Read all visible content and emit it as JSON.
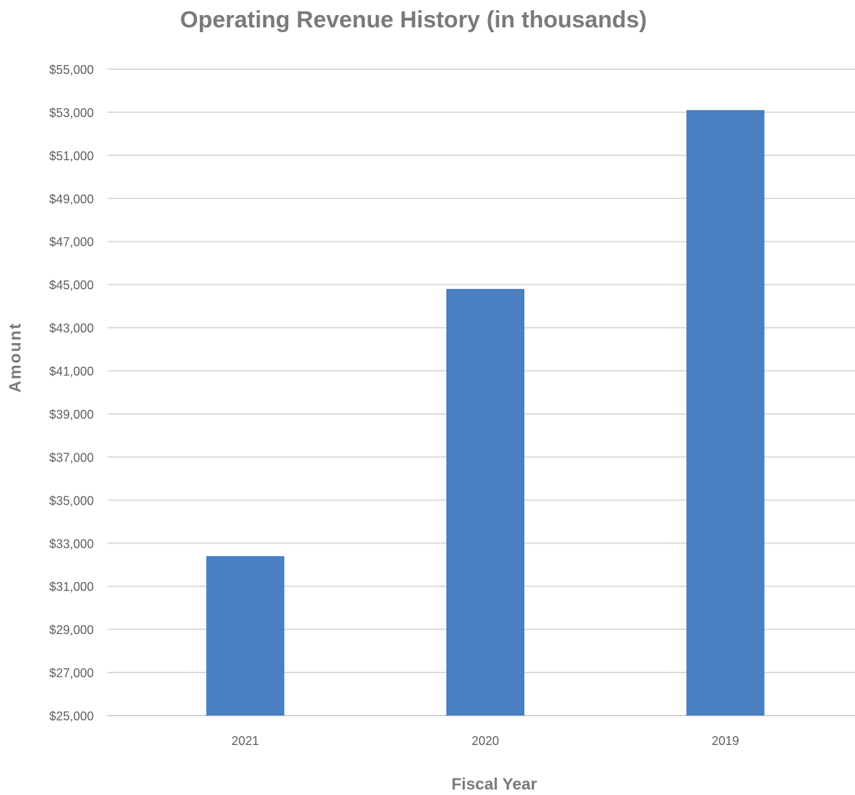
{
  "chart_data": {
    "type": "bar",
    "title": "Operating Revenue History (in thousands)",
    "xlabel": "Fiscal Year",
    "ylabel": "Amount",
    "categories": [
      "2021",
      "2020",
      "2019"
    ],
    "values": [
      32400,
      44800,
      53100
    ],
    "ylim": [
      25000,
      55000
    ],
    "yticks": [
      25000,
      27000,
      29000,
      31000,
      33000,
      35000,
      37000,
      39000,
      41000,
      43000,
      45000,
      47000,
      49000,
      51000,
      53000,
      55000
    ],
    "ytick_labels": [
      "$25,000",
      "$27,000",
      "$29,000",
      "$31,000",
      "$33,000",
      "$35,000",
      "$37,000",
      "$39,000",
      "$41,000",
      "$43,000",
      "$45,000",
      "$47,000",
      "$49,000",
      "$51,000",
      "$53,000",
      "$55,000"
    ],
    "grid": true,
    "legend": "none",
    "bar_color": "#4a7fc1"
  }
}
